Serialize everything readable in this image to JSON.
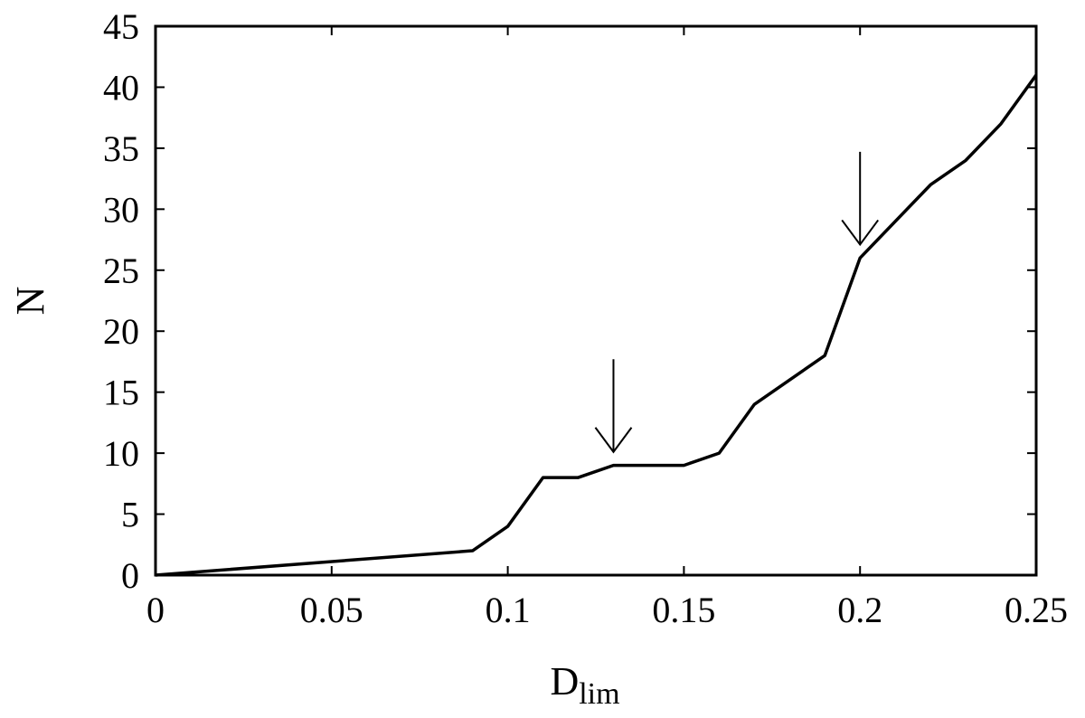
{
  "chart_data": {
    "type": "line",
    "title": "",
    "xlabel": "D",
    "xlabel_subscript": "lim",
    "ylabel": "N",
    "xlim": [
      0,
      0.25
    ],
    "ylim": [
      0,
      45
    ],
    "grid": false,
    "xticks": [
      0,
      0.05,
      0.1,
      0.15,
      0.2,
      0.25
    ],
    "xtick_labels": [
      "0",
      "0.05",
      "0.1",
      "0.15",
      "0.2",
      "0.25"
    ],
    "yticks": [
      0,
      5,
      10,
      15,
      20,
      25,
      30,
      35,
      40,
      45
    ],
    "ytick_labels": [
      "0",
      "5",
      "10",
      "15",
      "20",
      "25",
      "30",
      "35",
      "40",
      "45"
    ],
    "series": [
      {
        "x": [
          0,
          0.09,
          0.1,
          0.11,
          0.12,
          0.13,
          0.14,
          0.15,
          0.16,
          0.17,
          0.18,
          0.19,
          0.2,
          0.21,
          0.22,
          0.23,
          0.24,
          0.25
        ],
        "y": [
          0,
          2,
          4,
          8,
          8,
          9,
          9,
          9,
          10,
          14,
          16,
          18,
          26,
          29,
          32,
          34,
          37,
          41
        ]
      }
    ],
    "annotations": [
      {
        "type": "arrow",
        "x": 0.13,
        "y_start": 17.7,
        "y_end": 10.1
      },
      {
        "type": "arrow",
        "x": 0.2,
        "y_start": 34.7,
        "y_end": 27.1
      }
    ]
  }
}
